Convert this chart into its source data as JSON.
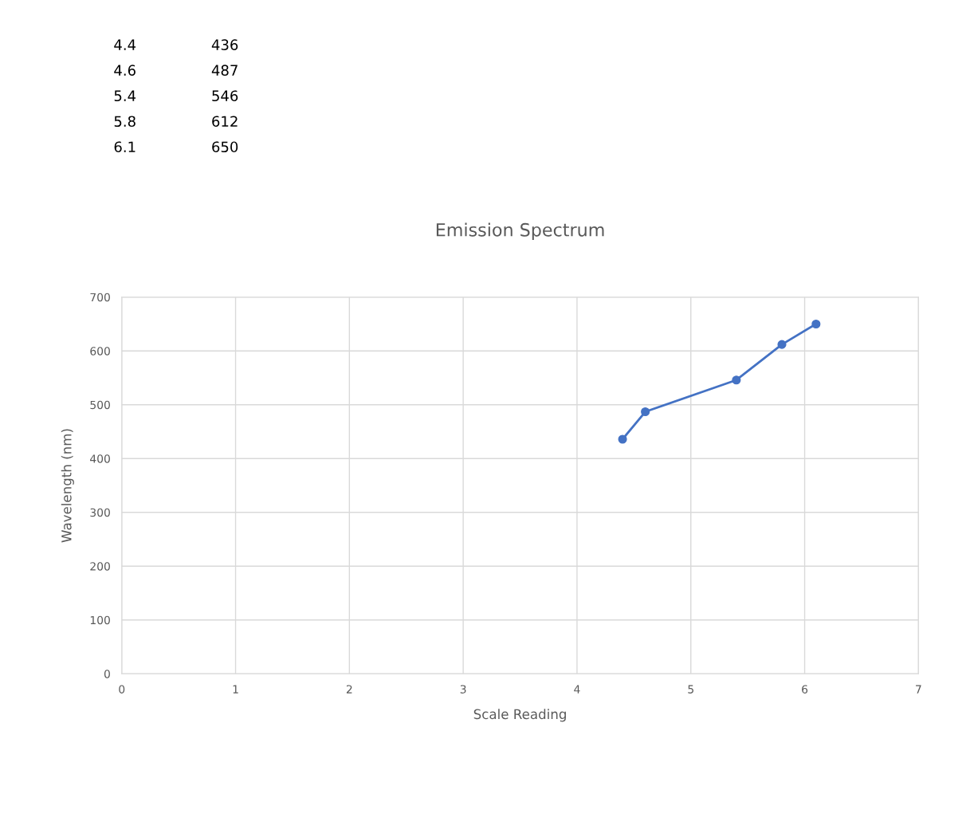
{
  "chart_data": {
    "type": "line",
    "title": "Emission Spectrum",
    "xlabel": "Scale Reading",
    "ylabel": "Wavelength (nm)",
    "x": [
      4.4,
      4.6,
      5.4,
      5.8,
      6.1
    ],
    "series": [
      {
        "color": "#4472c4",
        "values": [
          436,
          487,
          546,
          612,
          650
        ]
      }
    ],
    "marker": "circle",
    "line_style": "solid",
    "annotations": [
      "4.4",
      "436",
      "4.6",
      "487",
      "5.4",
      "546",
      "5.8",
      "612",
      "6.1",
      "650"
    ],
    "xlim": [
      0,
      7
    ],
    "xticks": [
      0,
      1,
      2,
      3,
      4,
      5,
      6,
      7
    ],
    "ylim": [
      0,
      700
    ],
    "yticks": [
      0,
      100,
      200,
      300,
      400,
      500,
      600,
      700
    ],
    "grid": true,
    "legend": false
  }
}
